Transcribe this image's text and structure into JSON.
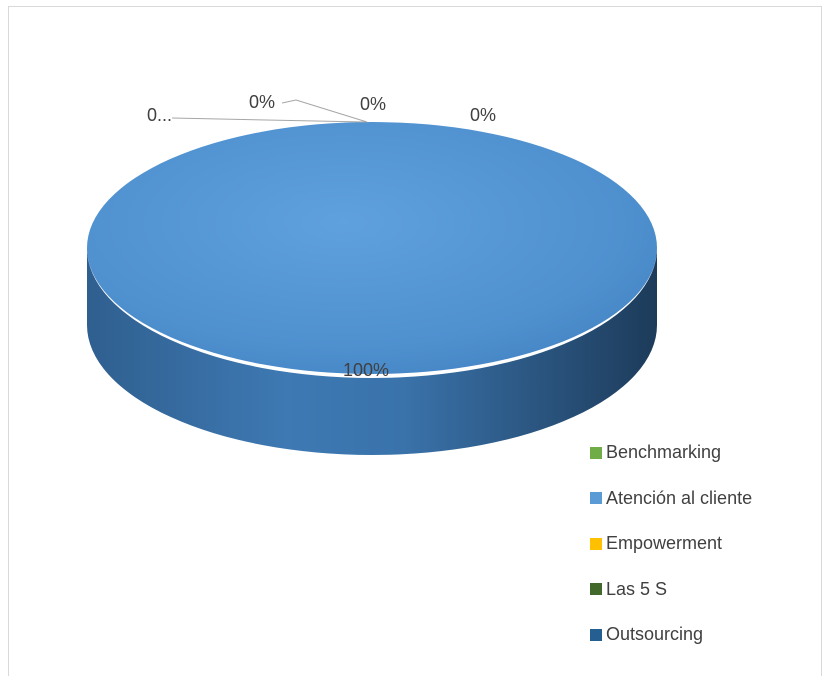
{
  "chart_data": {
    "type": "pie",
    "title": "",
    "categories": [
      "Benchmarking",
      "Atención al cliente",
      "Empowerment",
      "Las 5 S",
      "Outsourcing"
    ],
    "values": [
      0,
      100,
      0,
      0,
      0
    ],
    "unit": "%",
    "data_labels": [
      "0...",
      "100%",
      "0%",
      "0%",
      "0%"
    ],
    "colors": [
      "#70ad47",
      "#5b9bd5",
      "#ffc000",
      "#43682b",
      "#255e91"
    ],
    "legend_position": "bottom-right",
    "style": "3d"
  }
}
